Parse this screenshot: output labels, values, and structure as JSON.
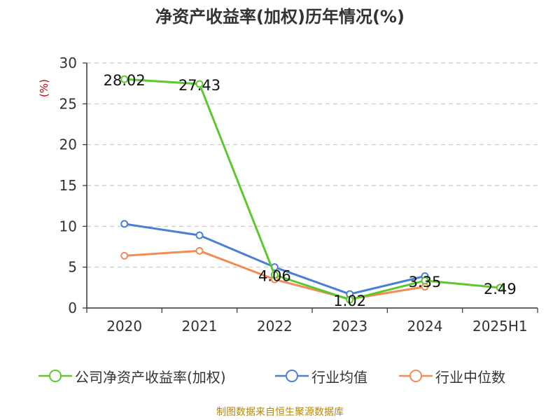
{
  "title": "净资产收益率(加权)历年情况(%)",
  "source": "制图数据来自恒生聚源数据库",
  "chart_data": {
    "type": "line",
    "title": "净资产收益率(加权)历年情况(%)",
    "ylabel": "(%)",
    "xlabel": "",
    "categories": [
      "2020",
      "2021",
      "2022",
      "2023",
      "2024",
      "2025H1"
    ],
    "ylim": [
      0,
      30
    ],
    "yticks": [
      0,
      5,
      10,
      15,
      20,
      25,
      30
    ],
    "grid": "horizontal-dashed",
    "legend_position": "bottom",
    "series": [
      {
        "name": "公司净资产收益率(加权)",
        "color": "#5cc82c",
        "values": [
          28.02,
          27.43,
          4.06,
          1.02,
          3.35,
          2.49
        ],
        "labels": [
          "28.02",
          "27.43",
          "4.06",
          "1.02",
          "3.35",
          "2.49"
        ]
      },
      {
        "name": "行业均值",
        "color": "#4a7fd6",
        "values": [
          10.3,
          8.9,
          5.0,
          1.7,
          3.9,
          null
        ],
        "labels": []
      },
      {
        "name": "行业中位数",
        "color": "#f28b54",
        "values": [
          6.4,
          7.0,
          3.5,
          1.1,
          2.6,
          null
        ],
        "labels": []
      }
    ]
  }
}
